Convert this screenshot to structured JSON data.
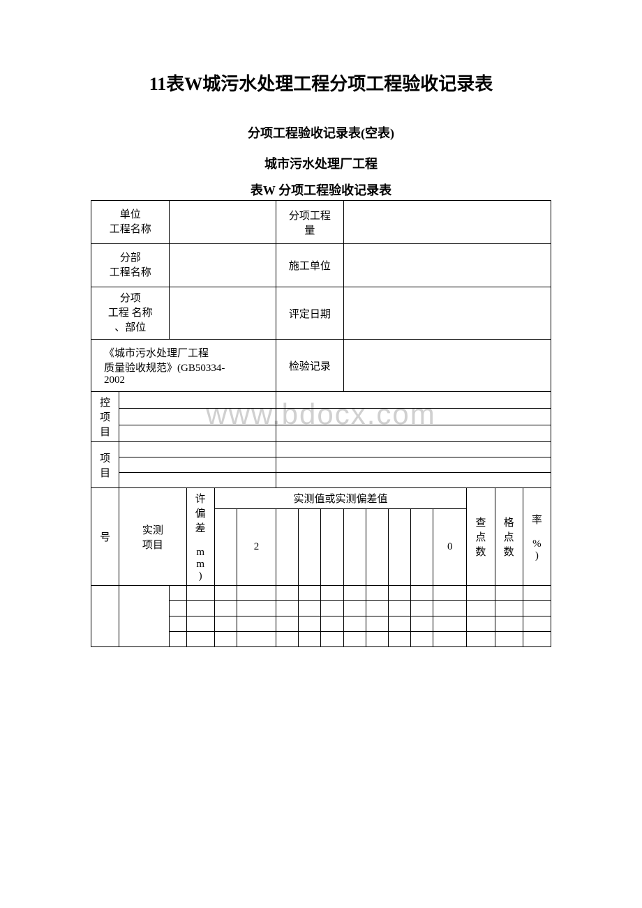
{
  "document": {
    "main_title": "11表W城污水处理工程分项工程验收记录表",
    "subtitle1": "分项工程验收记录表(空表)",
    "subtitle2": "城市污水处理厂工程",
    "subtitle3": "表W 分项工程验收记录表",
    "watermark": "www.bdocx.com"
  },
  "header_table": {
    "row1": {
      "label1": "单位\n工程名称",
      "val1": "",
      "label2": "分项工程\n量",
      "val2": ""
    },
    "row2": {
      "label1": "分部\n工程名称",
      "val1": "",
      "label2": "施工单位",
      "val2": ""
    },
    "row3": {
      "label1": "分项\n工程 名称\n、部位",
      "val1": "",
      "label2": "评定日期",
      "val2": ""
    },
    "row4": {
      "label1": "《城市污水处理厂工程\n质量验收规范》(GB50334-\n2002",
      "label2": "检验记录",
      "val2": ""
    }
  },
  "sections": {
    "control": "控\n项\n目",
    "general": "项\n目"
  },
  "measure_table": {
    "col_seq": "号",
    "col_item": "实测\n项目",
    "col_tolerance": "许\n偏\n差\n\nm\nm\n)",
    "col_header_span": "实测值或实测偏差值",
    "col_2": "2",
    "col_0": "0",
    "col_check": "查\n点\n数",
    "col_pass": "格\n点\n数",
    "col_rate": "率\n\n%\n)"
  },
  "colors": {
    "text": "#000000",
    "border": "#000000",
    "watermark": "#d0d0d0",
    "background": "#ffffff"
  }
}
